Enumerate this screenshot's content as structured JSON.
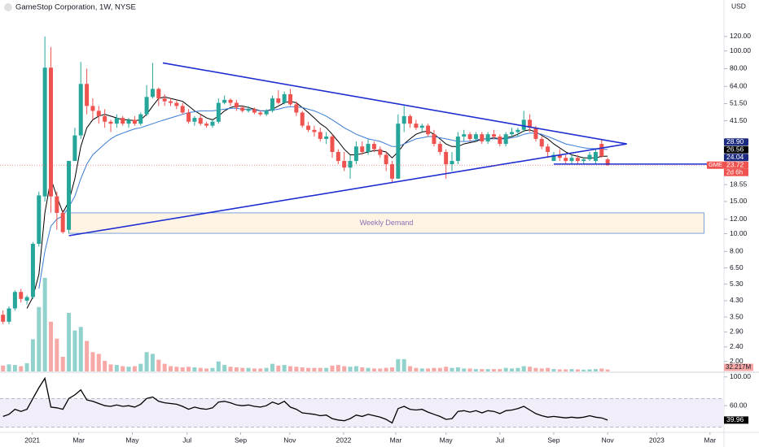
{
  "chart_data": {
    "type": "candlestick",
    "title": "GameStop Corporation, 1W, NYSE",
    "currency": "USD",
    "symbol": "GME",
    "countdown": "2d 6h",
    "log": true,
    "up_color": "#26a69a",
    "down_color": "#ef5350",
    "xlim": [
      -0.5,
      120.3
    ],
    "xticks": [
      {
        "value": 4.9,
        "label": "2021"
      },
      {
        "value": 12.65,
        "label": "Mar"
      },
      {
        "value": 21.6,
        "label": "May"
      },
      {
        "value": 30.75,
        "label": "Jul"
      },
      {
        "value": 39.7,
        "label": "Sep"
      },
      {
        "value": 47.9,
        "label": "Nov"
      },
      {
        "value": 56.9,
        "label": "2022"
      },
      {
        "value": 65.6,
        "label": "Mar"
      },
      {
        "value": 74,
        "label": "May"
      },
      {
        "value": 83,
        "label": "Jul"
      },
      {
        "value": 92,
        "label": "Sep"
      },
      {
        "value": 101,
        "label": "Nov"
      },
      {
        "value": 109.2,
        "label": "2023"
      },
      {
        "value": 118.1,
        "label": "Mar"
      }
    ],
    "ylim": [
      1.8,
      190
    ],
    "yticks": [
      {
        "value": 120,
        "label": "120.00"
      },
      {
        "value": 100,
        "label": "100.00"
      },
      {
        "value": 80,
        "label": "80.00"
      },
      {
        "value": 64,
        "label": "64.00"
      },
      {
        "value": 51.5,
        "label": "51.50"
      },
      {
        "value": 41.5,
        "label": "41.50"
      },
      {
        "value": 18.55,
        "label": "18.55"
      },
      {
        "value": 15,
        "label": "15.00"
      },
      {
        "value": 12,
        "label": "12.00"
      },
      {
        "value": 10,
        "label": "10.00"
      },
      {
        "value": 8,
        "label": "8.00"
      },
      {
        "value": 6.5,
        "label": "6.50"
      },
      {
        "value": 5.3,
        "label": "5.30"
      },
      {
        "value": 4.3,
        "label": "4.30"
      },
      {
        "value": 3.5,
        "label": "3.50"
      },
      {
        "value": 2.9,
        "label": "2.90"
      },
      {
        "value": 2.4,
        "label": "2.40"
      },
      {
        "value": 2,
        "label": "2.00"
      }
    ],
    "open": [
      3.6,
      3.3,
      3.9,
      4.8,
      4.3,
      4.5,
      8.8,
      16,
      81,
      16,
      13,
      10.5,
      25,
      34.5,
      66,
      50,
      47,
      44,
      41,
      40,
      43,
      40,
      42,
      40,
      45,
      56,
      62,
      55,
      53,
      52,
      50,
      46,
      41,
      43,
      40,
      39,
      41,
      52,
      54,
      52,
      49,
      47,
      48,
      46,
      45,
      47,
      55,
      52,
      58,
      51,
      46,
      39,
      37,
      36,
      33,
      34,
      28,
      25,
      23,
      25,
      30,
      28,
      31,
      29,
      27,
      24,
      20,
      40,
      44,
      40,
      38,
      39,
      35,
      31,
      28,
      24,
      25,
      34,
      35,
      33,
      35,
      32,
      35,
      34,
      31,
      35,
      36,
      37,
      42,
      38,
      33,
      30,
      25,
      27,
      26,
      25,
      26,
      25,
      25.5,
      25,
      31,
      25.5
    ],
    "high": [
      3.8,
      4,
      4.9,
      5,
      4.6,
      9,
      17,
      120,
      105,
      17,
      13.5,
      25,
      38,
      87,
      80,
      55,
      50,
      48,
      42,
      45,
      44,
      43,
      44,
      46,
      65,
      86,
      63,
      58,
      55,
      54,
      52,
      48,
      44,
      45,
      41,
      42,
      55,
      57,
      55,
      54,
      50,
      50,
      49,
      47,
      48,
      57,
      61,
      60,
      62,
      53,
      47,
      41,
      39,
      38,
      36,
      35,
      29,
      28,
      27,
      32,
      32,
      33,
      32,
      30,
      28,
      25,
      45,
      50,
      45,
      42,
      40,
      40,
      37,
      32,
      29,
      28,
      36,
      37,
      36,
      36,
      36,
      36,
      37,
      35,
      36,
      38,
      38,
      47,
      45,
      39,
      34,
      31,
      28,
      29,
      27,
      27,
      27,
      26,
      28,
      29,
      33,
      26
    ],
    "low": [
      3.2,
      3.2,
      3.8,
      4.2,
      4.1,
      4.4,
      8.5,
      15,
      13,
      10.5,
      10,
      10,
      25,
      33,
      45,
      42,
      40,
      38,
      36,
      38,
      39,
      38,
      39,
      39,
      44,
      55,
      50,
      50,
      50,
      48,
      45,
      40,
      39,
      39,
      38,
      38,
      40,
      51,
      50,
      47,
      46,
      46,
      45,
      44,
      44,
      46,
      51,
      51,
      50,
      44,
      38,
      36,
      34,
      32,
      31,
      26,
      24,
      22,
      20,
      24,
      27,
      27,
      28,
      26,
      22,
      19,
      20,
      36,
      38,
      37,
      36,
      34,
      30,
      27,
      20,
      22,
      24,
      32,
      32,
      32,
      31,
      31,
      33,
      30,
      30,
      34,
      34,
      36,
      36,
      32,
      29,
      26,
      25,
      25,
      24,
      24,
      24,
      24,
      25,
      24,
      26,
      23.5
    ],
    "close": [
      3.3,
      3.9,
      4.8,
      4.4,
      4.5,
      8.8,
      16.2,
      81,
      16,
      13,
      10.2,
      25,
      34.5,
      66,
      50,
      47,
      44,
      41,
      40,
      43,
      40,
      42,
      40,
      45,
      56,
      62,
      55,
      53,
      52,
      50,
      46,
      41,
      43,
      40,
      39,
      41,
      52,
      54,
      52,
      49,
      47,
      48,
      46,
      45,
      47,
      55,
      52,
      58,
      51,
      46,
      39,
      37,
      36,
      33,
      34,
      28,
      25,
      23,
      25,
      30,
      28,
      31,
      29,
      27,
      24,
      20,
      40,
      44,
      40,
      38,
      39,
      35,
      31,
      28,
      24,
      25,
      34,
      35,
      33,
      35,
      32,
      35,
      34,
      31,
      35,
      36,
      37,
      42,
      38,
      33,
      30,
      28,
      27,
      26,
      25,
      26,
      25,
      25.5,
      27,
      28,
      26.5,
      23.72
    ],
    "volume": [
      100,
      120,
      110,
      90,
      140,
      550,
      1100,
      1600,
      850,
      560,
      250,
      1000,
      700,
      760,
      520,
      330,
      300,
      180,
      120,
      110,
      90,
      80,
      90,
      130,
      330,
      300,
      200,
      130,
      90,
      80,
      70,
      80,
      70,
      60,
      50,
      60,
      170,
      110,
      80,
      70,
      60,
      60,
      50,
      50,
      60,
      130,
      100,
      110,
      90,
      80,
      70,
      60,
      60,
      60,
      60,
      100,
      110,
      90,
      80,
      90,
      70,
      60,
      50,
      50,
      60,
      70,
      210,
      210,
      90,
      60,
      50,
      50,
      60,
      60,
      80,
      60,
      70,
      50,
      50,
      40,
      40,
      40,
      40,
      40,
      60,
      50,
      60,
      90,
      80,
      60,
      50,
      60,
      40,
      35,
      35,
      40,
      35,
      30,
      35,
      40,
      50,
      32.217
    ],
    "volume_ylim": [
      0,
      2000
    ],
    "volume_last_label": "32.217M",
    "lines": [
      {
        "color": "#000000",
        "values": [
          null,
          null,
          null,
          null,
          3.9,
          4.5,
          6,
          13,
          20,
          16,
          13,
          15,
          20,
          30,
          38,
          42,
          44,
          45,
          44,
          43,
          42,
          42,
          41.5,
          42,
          45,
          50,
          55,
          56,
          55,
          54,
          53,
          50,
          47,
          45,
          43,
          42,
          44,
          47,
          49,
          50,
          50,
          49,
          48,
          47,
          47,
          48,
          50,
          52,
          53,
          52,
          49,
          46,
          43,
          40,
          38,
          35,
          32,
          29,
          27,
          27,
          27.5,
          28,
          28.5,
          28.5,
          28,
          26,
          28,
          31,
          33,
          35,
          36,
          36.5,
          35,
          33,
          31,
          30,
          30,
          31,
          31.5,
          32,
          33,
          33,
          33.5,
          33,
          33.5,
          34,
          35,
          36.5,
          37,
          36,
          34.5,
          33,
          31,
          29.5,
          28,
          27,
          26.5,
          26,
          26,
          26,
          26.5,
          26.56
        ]
      },
      {
        "color": "#3a7bd5",
        "values": [
          null,
          null,
          null,
          null,
          null,
          null,
          5,
          8,
          11,
          12,
          12.5,
          14,
          16,
          20,
          24,
          27,
          29,
          31,
          33,
          34.5,
          35.5,
          36.5,
          37.5,
          38,
          39,
          40,
          41,
          42,
          43,
          44,
          45,
          46,
          46.5,
          47,
          47,
          47,
          47.5,
          48,
          48.5,
          48.5,
          48,
          48,
          47.5,
          47,
          47,
          47.5,
          48,
          49,
          49.5,
          49.5,
          49,
          48,
          47,
          45.5,
          44,
          42,
          40,
          38,
          36.5,
          35,
          34,
          33,
          32.5,
          32,
          31,
          30,
          30,
          31,
          32,
          33,
          33.5,
          34,
          34,
          33.5,
          33,
          32.5,
          32,
          32,
          32,
          32.5,
          33,
          33,
          33,
          33,
          33,
          33.5,
          34,
          35,
          35.5,
          35.5,
          35,
          34,
          33,
          32,
          31,
          30.5,
          30,
          29.5,
          29.3,
          29.2,
          29,
          28.9
        ]
      }
    ],
    "trendlines": [
      {
        "color": "#1f2ed0",
        "points": [
          [
            26.7,
            86
          ],
          [
            104.2,
            31
          ]
        ]
      },
      {
        "color": "#1f2ed0",
        "points": [
          [
            11,
            9.75
          ],
          [
            104.2,
            31
          ]
        ]
      }
    ],
    "hline": {
      "color": "#1f2ed0",
      "from": 92,
      "value": 24.04
    },
    "demand_box": {
      "x": [
        11,
        117.1
      ],
      "y": [
        10.05,
        13
      ],
      "label": "Weekly Demand"
    },
    "price_labels": [
      {
        "value": 28.9,
        "label": "28.90",
        "color": "#1c2a80"
      },
      {
        "value": 26.56,
        "label": "26.56",
        "color": "#000000"
      },
      {
        "value": 24.04,
        "label": "24.04",
        "color": "#1c2a80"
      },
      {
        "value": 23.72,
        "label": "23.72",
        "color": "#ef5350"
      }
    ],
    "rsi": {
      "values": [
        45,
        48,
        55,
        52,
        55,
        70,
        85,
        98,
        58,
        57,
        55,
        70,
        75,
        82,
        68,
        66,
        63,
        60,
        59,
        61,
        59,
        60,
        58,
        62,
        70,
        72,
        66,
        64,
        63,
        62,
        59,
        55,
        58,
        56,
        55,
        57,
        65,
        66,
        64,
        61,
        60,
        61,
        59,
        58,
        60,
        65,
        62,
        66,
        58,
        55,
        50,
        49,
        48,
        46,
        47,
        42,
        40,
        39,
        42,
        47,
        45,
        48,
        46,
        44,
        41,
        36,
        56,
        59,
        55,
        54,
        55,
        51,
        48,
        45,
        41,
        42,
        52,
        53,
        51,
        53,
        50,
        53,
        52,
        49,
        53,
        54,
        56,
        59,
        54,
        49,
        46,
        44,
        45,
        44,
        43,
        44,
        43,
        44,
        46,
        44,
        43,
        39.96
      ],
      "last_label": "39.96",
      "ylim": [
        24,
        102
      ],
      "yticks": [
        {
          "value": 100,
          "label": "100.00"
        },
        {
          "value": 60,
          "label": "60.00"
        }
      ],
      "band": [
        30,
        70
      ],
      "color": "#000000",
      "band_color": "#7e57c2"
    }
  }
}
